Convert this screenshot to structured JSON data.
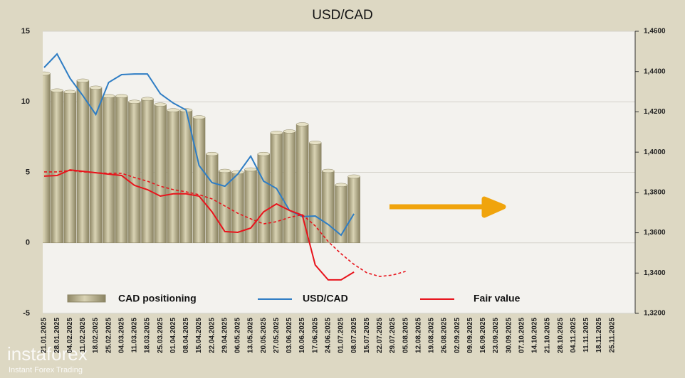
{
  "chart_data": {
    "type": "bar_line",
    "title": "USD/CAD",
    "categories": [
      "21.01.2025",
      "28.01.2025",
      "04.02.2025",
      "11.02.2025",
      "18.02.2025",
      "25.02.2025",
      "04.03.2025",
      "11.03.2025",
      "18.03.2025",
      "25.03.2025",
      "01.04.2025",
      "08.04.2025",
      "15.04.2025",
      "22.04.2025",
      "29.04.2025",
      "06.05.2025",
      "13.05.2025",
      "20.05.2025",
      "27.05.2025",
      "03.06.2025",
      "10.06.2025",
      "17.06.2025",
      "24.06.2025",
      "01.07.2025",
      "08.07.2025",
      "15.07.2025",
      "22.07.2025",
      "29.07.2025",
      "05.08.2025",
      "12.08.2025",
      "19.08.2025",
      "26.08.2025",
      "02.09.2025",
      "09.09.2025",
      "16.09.2025",
      "23.09.2025",
      "30.09.2025",
      "07.10.2025",
      "14.10.2025",
      "21.10.2025",
      "28.10.2025",
      "04.11.2025",
      "11.11.2025",
      "18.11.2025",
      "25.11.2025"
    ],
    "series": [
      {
        "name": "CAD positioning",
        "kind": "bar",
        "color": "#b3ab86",
        "values": [
          12.0,
          10.8,
          10.7,
          11.5,
          11.0,
          10.4,
          10.4,
          10.0,
          10.2,
          9.8,
          9.4,
          9.4,
          8.9,
          6.3,
          5.1,
          5.0,
          5.2,
          6.3,
          7.8,
          7.9,
          8.4,
          7.1,
          5.1,
          4.1,
          4.7,
          null,
          null,
          null,
          null,
          null,
          null,
          null,
          null,
          null,
          null,
          null,
          null,
          null,
          null,
          null,
          null,
          null,
          null,
          null,
          null
        ]
      },
      {
        "name": "USD/CAD",
        "kind": "line",
        "axis": "y2",
        "color": "#2e7dc4",
        "values": [
          1.442,
          1.4487,
          1.4367,
          1.428,
          1.4187,
          1.4346,
          1.4385,
          1.4388,
          1.4388,
          1.429,
          1.4244,
          1.4209,
          1.3934,
          1.3849,
          1.3831,
          1.3891,
          1.398,
          1.3856,
          1.382,
          1.3711,
          1.368,
          1.3683,
          1.3641,
          1.3588,
          1.3694,
          null,
          null,
          null,
          null,
          null,
          null,
          null,
          null,
          null,
          null,
          null,
          null,
          null,
          null,
          null,
          null,
          null,
          null,
          null,
          null
        ]
      },
      {
        "name": "Fair value",
        "kind": "line",
        "axis": "y2",
        "color": "#e8141c",
        "values": [
          1.3881,
          1.3884,
          1.3912,
          1.3905,
          1.3898,
          1.3891,
          1.3884,
          1.3835,
          1.3814,
          1.3782,
          1.3793,
          1.3793,
          1.3782,
          1.3704,
          1.3606,
          1.3602,
          1.3623,
          1.3704,
          1.3743,
          1.3711,
          1.3687,
          1.344,
          1.3366,
          1.3366,
          1.3405,
          null,
          null,
          null,
          null,
          null,
          null,
          null,
          null,
          null,
          null,
          null,
          null,
          null,
          null,
          null,
          null,
          null,
          null,
          null,
          null
        ]
      },
      {
        "kind": "line",
        "dashed": true,
        "axis": "y2",
        "color": "#e8141c",
        "values": [
          1.3902,
          1.3902,
          1.3909,
          1.3902,
          1.3898,
          1.3895,
          1.3895,
          1.3874,
          1.3856,
          1.3831,
          1.3814,
          1.3803,
          1.3789,
          1.3768,
          1.3733,
          1.3697,
          1.3669,
          1.3644,
          1.3655,
          1.3676,
          1.369,
          1.3634,
          1.3556,
          1.3496,
          1.3443,
          1.3401,
          1.3383,
          1.339,
          1.3408,
          null,
          null,
          null,
          null,
          null,
          null,
          null,
          null,
          null,
          null,
          null,
          null,
          null,
          null,
          null,
          null
        ]
      }
    ],
    "ylim": [
      -5,
      15
    ],
    "yticks": [
      -5,
      0,
      5,
      10,
      15
    ],
    "y2lim": [
      1.32,
      1.46
    ],
    "y2ticks": [
      {
        "value": 1.32,
        "label": "1,3200"
      },
      {
        "value": 1.34,
        "label": "1,3400"
      },
      {
        "value": 1.36,
        "label": "1,3600"
      },
      {
        "value": 1.38,
        "label": "1,3800"
      },
      {
        "value": 1.4,
        "label": "1,4000"
      },
      {
        "value": 1.42,
        "label": "1,4200"
      },
      {
        "value": 1.44,
        "label": "1,4400"
      },
      {
        "value": 1.46,
        "label": "1,4600"
      }
    ],
    "grid": true,
    "watermark": {
      "brand": "instaforex",
      "tagline": "Instant Forex Trading"
    }
  }
}
